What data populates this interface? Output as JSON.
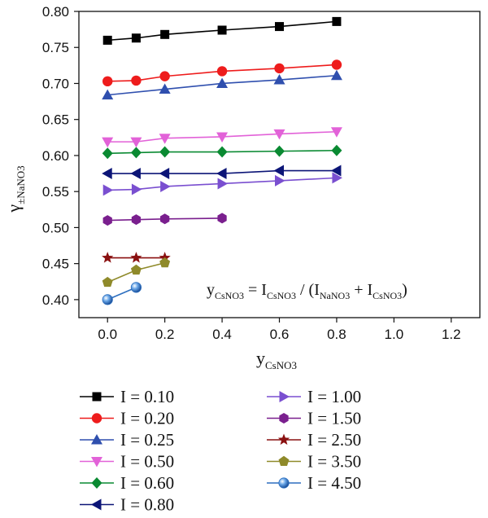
{
  "chart_data": {
    "type": "line",
    "ylabel": {
      "main": "γ",
      "sub": "±NaNO3"
    },
    "xlabel": {
      "main": "y",
      "sub": "CsNO3"
    },
    "annotation": {
      "y": "y",
      "y_sub": "CsNO3",
      "eq": " = I",
      "i1_sub": "CsNO3",
      "mid": " / (I",
      "i2_sub": "NaNO3",
      "plus": " + I",
      "i3_sub": "CsNO3",
      "close": ")"
    },
    "xlim": [
      -0.1,
      1.3
    ],
    "ylim": [
      0.375,
      0.8
    ],
    "xticks": [
      "0.0",
      "0.2",
      "0.4",
      "0.6",
      "0.8",
      "1.0",
      "1.2"
    ],
    "xtick_values": [
      0.0,
      0.2,
      0.4,
      0.6,
      0.8,
      1.0,
      1.2
    ],
    "yticks": [
      "0.40",
      "0.45",
      "0.50",
      "0.55",
      "0.60",
      "0.65",
      "0.70",
      "0.75",
      "0.80"
    ],
    "ytick_values": [
      0.4,
      0.45,
      0.5,
      0.55,
      0.6,
      0.65,
      0.7,
      0.75,
      0.8
    ],
    "grid": false,
    "legend_position": "bottom",
    "series": [
      {
        "name": "I = 0.10",
        "color": "#000000",
        "marker": "square",
        "x": [
          0.0,
          0.1,
          0.2,
          0.4,
          0.6,
          0.8
        ],
        "y": [
          0.76,
          0.763,
          0.768,
          0.774,
          0.779,
          0.786
        ]
      },
      {
        "name": "I = 0.20",
        "color": "#ee1c1c",
        "marker": "circle",
        "x": [
          0.0,
          0.1,
          0.2,
          0.4,
          0.6,
          0.8
        ],
        "y": [
          0.703,
          0.704,
          0.71,
          0.717,
          0.721,
          0.726
        ]
      },
      {
        "name": "I = 0.25",
        "color": "#2f4fae",
        "marker": "triangle-up",
        "x": [
          0.0,
          0.2,
          0.4,
          0.6,
          0.8
        ],
        "y": [
          0.684,
          0.692,
          0.7,
          0.705,
          0.711
        ]
      },
      {
        "name": "I = 0.50",
        "color": "#e262d8",
        "marker": "triangle-down",
        "x": [
          0.0,
          0.1,
          0.2,
          0.4,
          0.6,
          0.8
        ],
        "y": [
          0.619,
          0.619,
          0.624,
          0.626,
          0.63,
          0.633
        ]
      },
      {
        "name": "I = 0.60",
        "color": "#0a8a32",
        "marker": "diamond",
        "x": [
          0.0,
          0.1,
          0.2,
          0.4,
          0.6,
          0.8
        ],
        "y": [
          0.603,
          0.604,
          0.605,
          0.605,
          0.606,
          0.607
        ]
      },
      {
        "name": "I = 0.80",
        "color": "#0c1577",
        "marker": "triangle-left",
        "x": [
          0.0,
          0.1,
          0.2,
          0.4,
          0.6,
          0.8
        ],
        "y": [
          0.575,
          0.575,
          0.575,
          0.575,
          0.579,
          0.579
        ]
      },
      {
        "name": "I = 1.00",
        "color": "#7a4fd0",
        "marker": "triangle-right",
        "x": [
          0.0,
          0.1,
          0.2,
          0.4,
          0.6,
          0.8
        ],
        "y": [
          0.552,
          0.553,
          0.557,
          0.561,
          0.565,
          0.569
        ]
      },
      {
        "name": "I = 1.50",
        "color": "#7a1f8e",
        "marker": "hexagon",
        "x": [
          0.0,
          0.1,
          0.2,
          0.4
        ],
        "y": [
          0.51,
          0.511,
          0.512,
          0.513
        ]
      },
      {
        "name": "I = 2.50",
        "color": "#8a1111",
        "marker": "star",
        "x": [
          0.0,
          0.1,
          0.2
        ],
        "y": [
          0.458,
          0.458,
          0.458
        ]
      },
      {
        "name": "I = 3.50",
        "color": "#8f8a2a",
        "marker": "pentagon",
        "x": [
          0.0,
          0.1,
          0.2
        ],
        "y": [
          0.424,
          0.441,
          0.451
        ]
      },
      {
        "name": "I = 4.50",
        "color": "#2d6fbf",
        "marker": "sphere",
        "x": [
          0.0,
          0.1
        ],
        "y": [
          0.4,
          0.417
        ]
      }
    ]
  }
}
